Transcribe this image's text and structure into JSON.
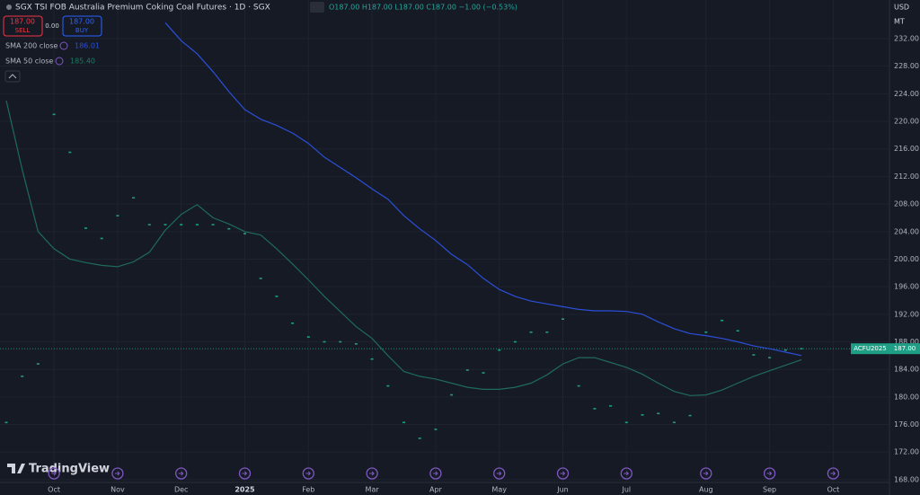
{
  "chart_data": {
    "type": "line",
    "title": "SGX TSI FOB Australia Premium Coking Coal Futures · 1D · SGX",
    "ohlc": "O187.00 H187.00 L187.00 C187.00 −1.00 (−0.53%)",
    "sell": {
      "price": "187.00",
      "label": "SELL"
    },
    "buy": {
      "price": "187.00",
      "label": "BUY"
    },
    "spread": "0.00",
    "currency": "USD",
    "unit": "MT",
    "brand": "TradingView",
    "symbol_label": "ACFU2025",
    "last_price": {
      "value": 187,
      "label": "187.00"
    },
    "categories": [
      null,
      null,
      null,
      "Oct",
      null,
      null,
      null,
      "Nov",
      null,
      null,
      null,
      "Dec",
      null,
      null,
      null,
      "2025",
      null,
      null,
      null,
      "Feb",
      null,
      null,
      null,
      "Mar",
      null,
      null,
      null,
      "Apr",
      null,
      null,
      null,
      "May",
      null,
      null,
      null,
      "Jun",
      null,
      null,
      null,
      "Jul",
      null,
      null,
      null,
      null,
      "Aug",
      null,
      null,
      null,
      "Sep",
      null,
      null,
      null,
      "Oct"
    ],
    "series": [
      {
        "name": "ACFU2025",
        "style": "dots",
        "color": "#1e9e84",
        "values": [
          176.3,
          183,
          184.8,
          221,
          215.5,
          204.5,
          203,
          206.3,
          208.9,
          205,
          205,
          205,
          205,
          205,
          204.4,
          203.7,
          197.2,
          194.6,
          190.7,
          188.7,
          188,
          188,
          187.7,
          185.5,
          181.6,
          176.3,
          174,
          175.3,
          180.3,
          183.9,
          183.5,
          186.8,
          188,
          189.4,
          189.4,
          191.3,
          181.6,
          178.3,
          178.7,
          176.3,
          177.4,
          177.6,
          176.3,
          177.3,
          189.4,
          191.1,
          189.6,
          186.1,
          185.7,
          186.8,
          187,
          null,
          null
        ]
      },
      {
        "name": "SMA 200 close",
        "last_label": "186.01",
        "style": "line",
        "color": "#2b4fd8",
        "values": [
          null,
          null,
          null,
          null,
          null,
          null,
          null,
          null,
          null,
          null,
          234.3,
          231.7,
          229.8,
          227.2,
          224.3,
          221.7,
          220.3,
          219.4,
          218.3,
          216.8,
          214.8,
          213.3,
          211.8,
          210.2,
          208.7,
          206.3,
          204.4,
          202.7,
          200.7,
          199.2,
          197.2,
          195.6,
          194.6,
          193.9,
          193.5,
          193.1,
          192.7,
          192.5,
          192.5,
          192.4,
          192,
          190.9,
          189.9,
          189.2,
          188.9,
          188.5,
          188,
          187.4,
          187,
          186.5,
          186,
          null,
          null
        ]
      },
      {
        "name": "SMA 50 close",
        "last_label": "185.40",
        "style": "line",
        "color": "#1f6b5a",
        "values": [
          223,
          213,
          204,
          201.5,
          200,
          199.5,
          199.1,
          198.9,
          199.6,
          201,
          204.2,
          206.5,
          207.9,
          206,
          205.1,
          204,
          203.5,
          201.5,
          199.3,
          197,
          194.6,
          192.4,
          190.2,
          188.5,
          186,
          183.7,
          183,
          182.6,
          182,
          181.4,
          181.1,
          181.1,
          181.4,
          182,
          183.2,
          184.8,
          185.7,
          185.7,
          185,
          184.3,
          183.3,
          182,
          180.8,
          180.2,
          180.3,
          181,
          182,
          183,
          183.8,
          184.6,
          185.4,
          null,
          null
        ]
      }
    ],
    "ylim": [
      167.6,
      237.6
    ],
    "yticks": [
      {
        "value": 168,
        "label": "168.00"
      },
      {
        "value": 172,
        "label": "172.00"
      },
      {
        "value": 176,
        "label": "176.00"
      },
      {
        "value": 180,
        "label": "180.00"
      },
      {
        "value": 184,
        "label": "184.00"
      },
      {
        "value": 188,
        "label": "188.00"
      },
      {
        "value": 192,
        "label": "192.00"
      },
      {
        "value": 196,
        "label": "196.00"
      },
      {
        "value": 200,
        "label": "200.00"
      },
      {
        "value": 204,
        "label": "204.00"
      },
      {
        "value": 208,
        "label": "208.00"
      },
      {
        "value": 212,
        "label": "212.00"
      },
      {
        "value": 216,
        "label": "216.00"
      },
      {
        "value": 220,
        "label": "220.00"
      },
      {
        "value": 224,
        "label": "224.00"
      },
      {
        "value": 228,
        "label": "228.00"
      },
      {
        "value": 232,
        "label": "232.00"
      }
    ],
    "grid": true
  }
}
